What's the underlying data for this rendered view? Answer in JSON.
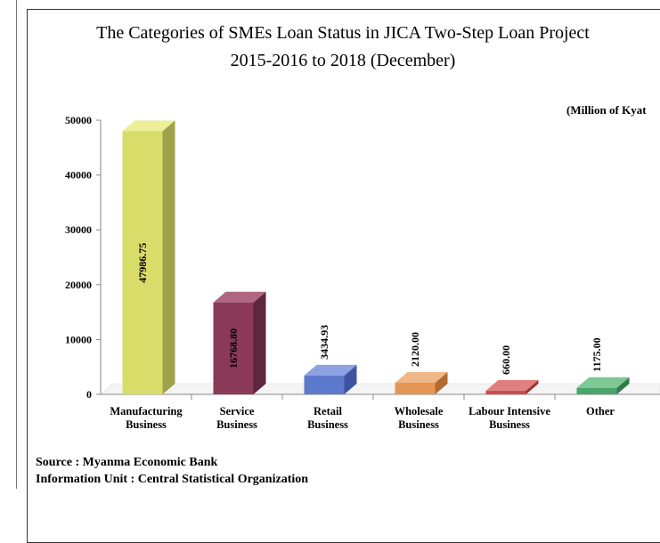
{
  "chart_data": {
    "type": "bar",
    "title": "The Categories of SMEs Loan Status in JICA Two-Step Loan Project",
    "subtitle": "2015-2016 to 2018 (December)",
    "unit_label": "(Million of Kyat",
    "categories": [
      [
        "Manufacturing",
        "Business"
      ],
      [
        "Service",
        "Business"
      ],
      [
        "Retail",
        "Business"
      ],
      [
        "Wholesale",
        "Business"
      ],
      [
        "Labour Intensive",
        "Business"
      ],
      [
        "Other"
      ]
    ],
    "values": [
      47986.75,
      16768.8,
      3434.93,
      2120.0,
      660.0,
      1175.0
    ],
    "value_labels": [
      "47986.75",
      "16768.80",
      "3434.93",
      "2120.00",
      "660.00",
      "1175.00"
    ],
    "y_ticks": [
      "0",
      "10000",
      "20000",
      "30000",
      "40000",
      "50000"
    ],
    "ylim": [
      0,
      50000
    ],
    "colors": {
      "front": [
        "#dadc6a",
        "#8a3a58",
        "#5d79cc",
        "#e39655",
        "#cc4d4d",
        "#4ba56a"
      ],
      "side": [
        "#9fa24a",
        "#5e2740",
        "#3e54a0",
        "#b06b32",
        "#9b3434",
        "#327949"
      ],
      "top": [
        "#ecee98",
        "#b06683",
        "#8ea1e0",
        "#f0b888",
        "#e08080",
        "#7ec896"
      ]
    },
    "grid": false,
    "legend": "none"
  },
  "source": {
    "line1": "Source : Myanma Economic Bank",
    "line2": "Information Unit : Central Statistical Organization"
  }
}
